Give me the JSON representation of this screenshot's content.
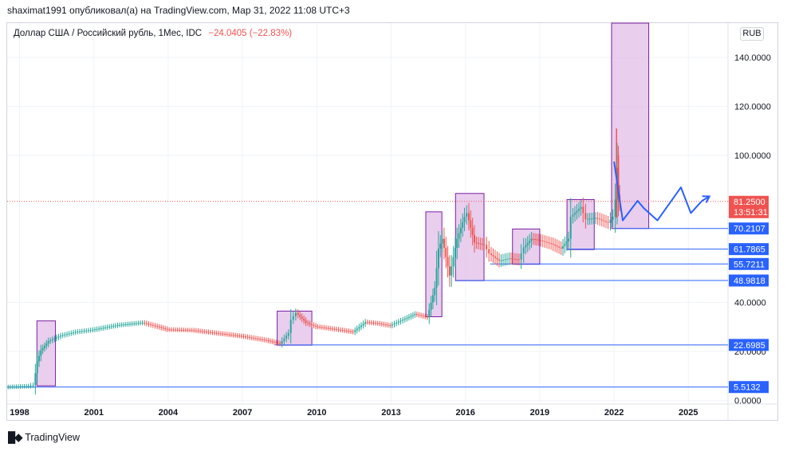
{
  "header": {
    "published_by": "shaximat1991 опубликовал(а) на TradingView.com, Мар 31, 2022 11:08 UTC+3"
  },
  "symbol": {
    "title": "Доллар США / Российский рубль, 1Мес, IDC",
    "change": "−24.0405 (−22.83%)"
  },
  "currency_button": "RUB",
  "brand": {
    "logo_icon": "tradingview-logo-icon",
    "name": "TradingView"
  },
  "colors": {
    "up": "#26a69a",
    "down": "#ef5350",
    "hline": "#2962ff",
    "box_fill": "#e1bee7",
    "box_stroke": "#7b1fa2",
    "price_line": "#ef5350",
    "grid": "#f0f3fa"
  },
  "chart_data": {
    "type": "line",
    "subtype": "candlestick-monthly",
    "x_ticks": [
      "1998",
      "2001",
      "2004",
      "2007",
      "2010",
      "2013",
      "2016",
      "2019",
      "2022",
      "2025"
    ],
    "y_ticks": [
      "0.0000",
      "20.0000",
      "40.0000",
      "100.0000",
      "120.0000",
      "140.0000"
    ],
    "ylim": [
      -1.4,
      154
    ],
    "xlim": [
      1997.5,
      2026.6
    ],
    "grid": true,
    "price_series": [
      [
        1997.5,
        5.5
      ],
      [
        1998.4,
        5.9
      ],
      [
        1998.6,
        6.3
      ],
      [
        1998.75,
        16.0
      ],
      [
        1998.9,
        20.5
      ],
      [
        1999.2,
        24.2
      ],
      [
        1999.7,
        26.5
      ],
      [
        2000.3,
        28.0
      ],
      [
        2001.0,
        28.9
      ],
      [
        2002.0,
        30.8
      ],
      [
        2003.0,
        31.8
      ],
      [
        2003.6,
        30.2
      ],
      [
        2004.0,
        29.0
      ],
      [
        2005.0,
        28.7
      ],
      [
        2006.0,
        27.5
      ],
      [
        2007.0,
        26.3
      ],
      [
        2008.0,
        24.6
      ],
      [
        2008.55,
        23.2
      ],
      [
        2008.9,
        27.5
      ],
      [
        2009.0,
        33.0
      ],
      [
        2009.2,
        35.8
      ],
      [
        2009.6,
        31.8
      ],
      [
        2010.0,
        30.2
      ],
      [
        2011.0,
        28.8
      ],
      [
        2011.5,
        28.0
      ],
      [
        2012.0,
        32.0
      ],
      [
        2012.5,
        31.5
      ],
      [
        2013.0,
        30.6
      ],
      [
        2013.6,
        33.4
      ],
      [
        2014.0,
        35.3
      ],
      [
        2014.5,
        34.0
      ],
      [
        2014.8,
        46.0
      ],
      [
        2014.95,
        62.0
      ],
      [
        2015.1,
        66.0
      ],
      [
        2015.4,
        51.0
      ],
      [
        2015.7,
        66.0
      ],
      [
        2016.0,
        75.0
      ],
      [
        2016.1,
        76.5
      ],
      [
        2016.4,
        64.5
      ],
      [
        2016.8,
        63.5
      ],
      [
        2017.0,
        60.0
      ],
      [
        2017.4,
        57.0
      ],
      [
        2017.8,
        58.0
      ],
      [
        2018.2,
        57.5
      ],
      [
        2018.4,
        62.5
      ],
      [
        2018.7,
        66.0
      ],
      [
        2019.0,
        65.5
      ],
      [
        2019.5,
        64.0
      ],
      [
        2019.9,
        62.0
      ],
      [
        2020.2,
        66.0
      ],
      [
        2020.3,
        75.0
      ],
      [
        2020.7,
        79.0
      ],
      [
        2020.9,
        74.0
      ],
      [
        2021.3,
        74.5
      ],
      [
        2021.8,
        72.5
      ],
      [
        2022.0,
        75.0
      ],
      [
        2022.1,
        82.0
      ],
      [
        2022.15,
        95.0
      ],
      [
        2022.2,
        84.0
      ],
      [
        2022.25,
        81.25
      ]
    ],
    "spikes": [
      {
        "x": 2022.1,
        "high": 111.0,
        "low": 74.5
      },
      {
        "x": 2022.18,
        "high": 100.0,
        "low": 81.0
      }
    ],
    "highlight_boxes": [
      {
        "x0": 1998.7,
        "x1": 1999.45,
        "y0": 6.0,
        "y1": 32.5
      },
      {
        "x0": 2008.4,
        "x1": 2009.8,
        "y0": 22.6,
        "y1": 36.5
      },
      {
        "x0": 2014.4,
        "x1": 2015.05,
        "y0": 34.2,
        "y1": 77.0
      },
      {
        "x0": 2015.6,
        "x1": 2016.75,
        "y0": 48.9,
        "y1": 84.5
      },
      {
        "x0": 2017.9,
        "x1": 2019.0,
        "y0": 55.6,
        "y1": 70.0
      },
      {
        "x0": 2020.1,
        "x1": 2021.2,
        "y0": 61.6,
        "y1": 82.0
      },
      {
        "x0": 2021.9,
        "x1": 2023.4,
        "y0": 70.2,
        "y1": 154.0
      }
    ],
    "horizontal_lines": [
      {
        "value": 70.2107,
        "label": "70.2107",
        "from": 2022.0
      },
      {
        "value": 61.7865,
        "label": "61.7865",
        "from": 2020.1
      },
      {
        "value": 55.7211,
        "label": "55.7211",
        "from": 2017.0
      },
      {
        "value": 48.9818,
        "label": "48.9818",
        "from": 2015.6
      },
      {
        "value": 22.6985,
        "label": "22.6985",
        "from": 2008.3
      },
      {
        "value": 5.5132,
        "label": "5.5132",
        "from": 1997.5
      }
    ],
    "projection_path": [
      [
        2022.0,
        97.5
      ],
      [
        2022.35,
        73.5
      ],
      [
        2022.95,
        81.5
      ],
      [
        2023.2,
        78.5
      ],
      [
        2023.75,
        73.5
      ],
      [
        2024.7,
        87.0
      ],
      [
        2025.1,
        76.5
      ],
      [
        2025.55,
        81.5
      ],
      [
        2025.85,
        83.3
      ]
    ],
    "current_price": {
      "value": 81.25,
      "label": "81.2500",
      "countdown": "13:51:31"
    }
  }
}
